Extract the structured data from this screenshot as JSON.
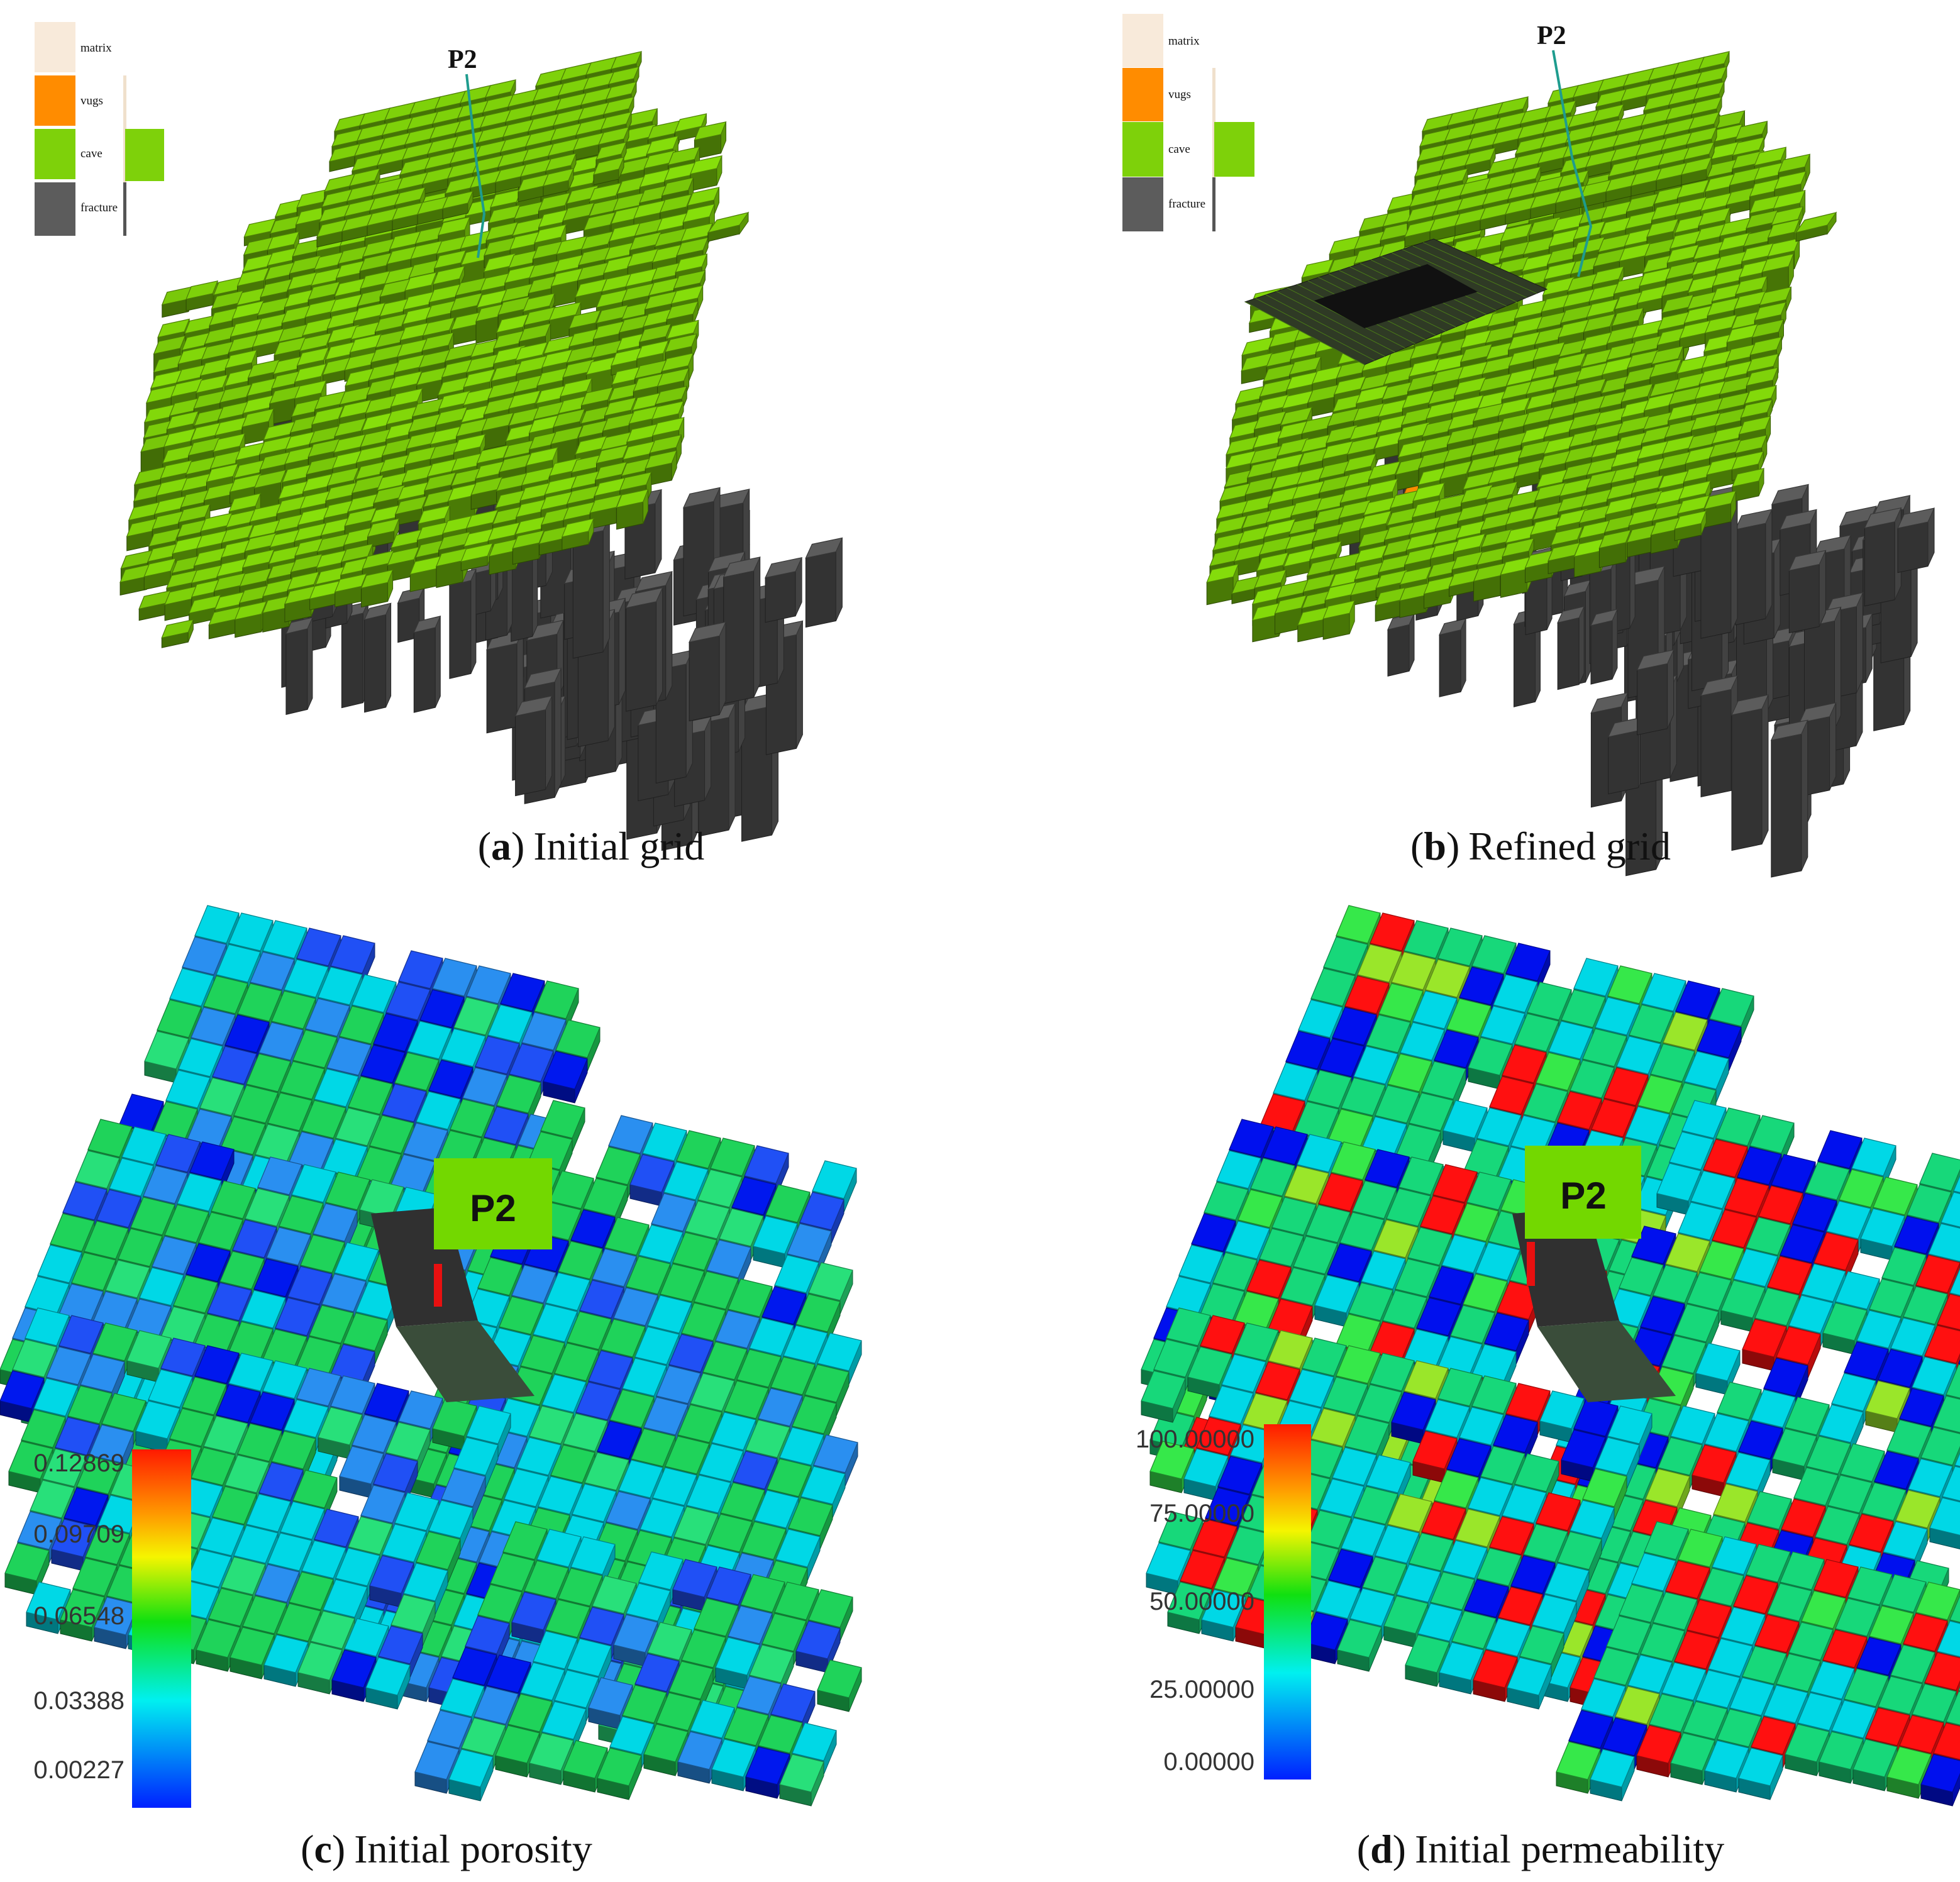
{
  "panels": [
    {
      "id": "a",
      "caption_letter": "a",
      "caption_text": "Initial grid",
      "well_label": "P2",
      "legend": [
        "matrix",
        "vugs",
        "cave",
        "fracture"
      ]
    },
    {
      "id": "b",
      "caption_letter": "b",
      "caption_text": "Refined grid",
      "well_label": "P2",
      "legend": [
        "matrix",
        "vugs",
        "cave",
        "fracture"
      ]
    },
    {
      "id": "c",
      "caption_letter": "c",
      "caption_text": "Initial porosity",
      "well_label": "P2",
      "colorbar_ticks": [
        "0.12869",
        "0.09709",
        "0.06548",
        "0.03388",
        "0.00227"
      ]
    },
    {
      "id": "d",
      "caption_letter": "d",
      "caption_text": "Initial permeability",
      "well_label": "P2",
      "colorbar_ticks": [
        "100.00000",
        "75.00000",
        "50.00000",
        "25.00000",
        "0.00000"
      ]
    }
  ],
  "colors": {
    "matrix": "#f8eada",
    "vugs": "#ff8c00",
    "cave": "#7ed10a",
    "fracture": "#5c5c5c",
    "label_box": "#73d800",
    "well_path": "#1e9c8e",
    "well_marker": "#e81010"
  }
}
